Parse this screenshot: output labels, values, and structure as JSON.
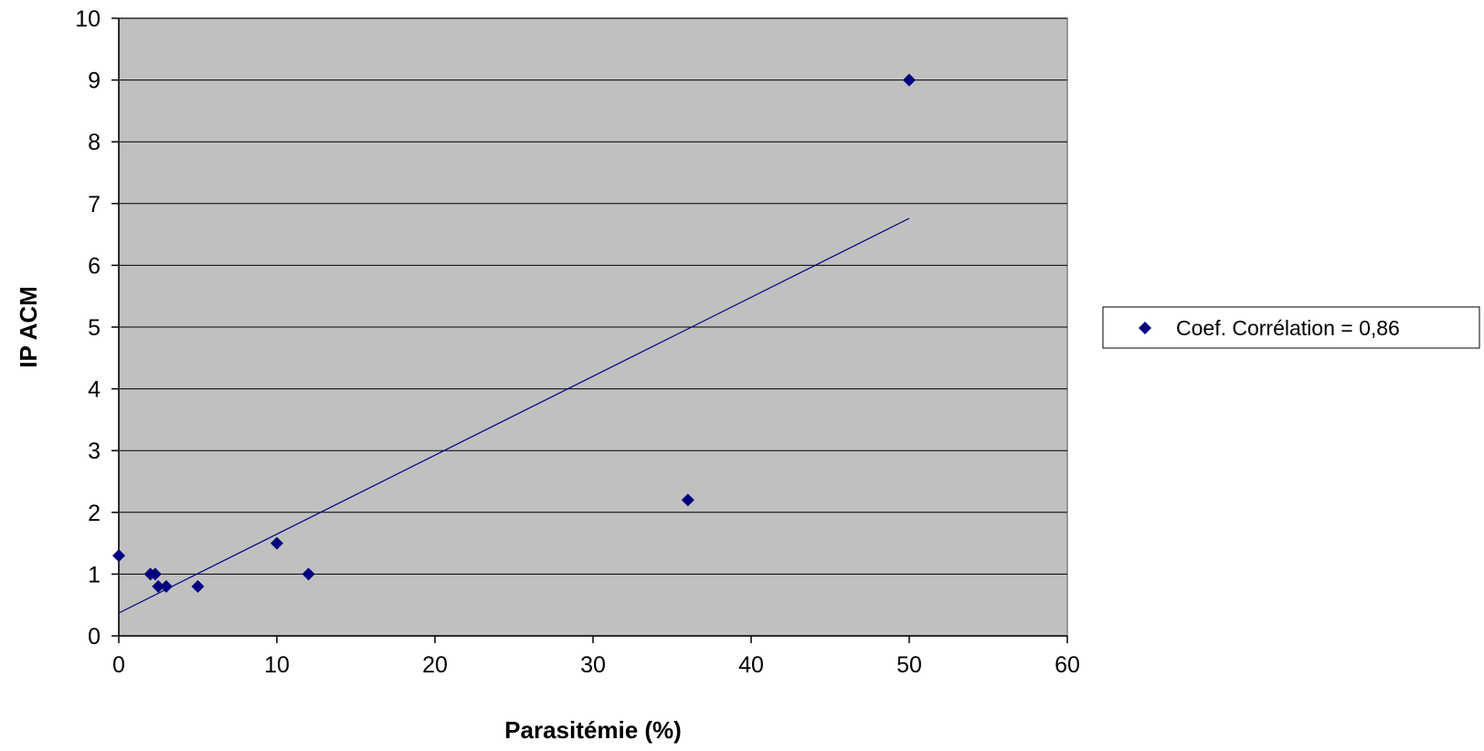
{
  "chart_data": {
    "type": "scatter",
    "title": "",
    "xlabel": "Parasitémie (%)",
    "ylabel": "IP ACM",
    "xlim": [
      0,
      60
    ],
    "ylim": [
      0,
      10
    ],
    "xticks": [
      "0",
      "10",
      "20",
      "30",
      "40",
      "50",
      "60"
    ],
    "yticks": [
      "0",
      "1",
      "2",
      "3",
      "4",
      "5",
      "6",
      "7",
      "8",
      "9",
      "10"
    ],
    "grid": "horizontal",
    "legend_position": "right",
    "series": [
      {
        "name": "Coef. Corrélation = 0,86",
        "marker": "diamond",
        "color": "#000080",
        "x": [
          0,
          2,
          2.3,
          2.5,
          3,
          5,
          10,
          12,
          36,
          50
        ],
        "y": [
          1.3,
          1.0,
          1.0,
          0.8,
          0.8,
          0.8,
          1.5,
          1.0,
          2.2,
          9.0
        ]
      }
    ],
    "trendline": {
      "type": "linear",
      "color": "#000080",
      "x": [
        0,
        50
      ],
      "y": [
        0.37,
        6.76
      ]
    },
    "colors": {
      "plot_background": "#c0c0c0",
      "gridline": "#000000",
      "marker": "#000080"
    }
  }
}
